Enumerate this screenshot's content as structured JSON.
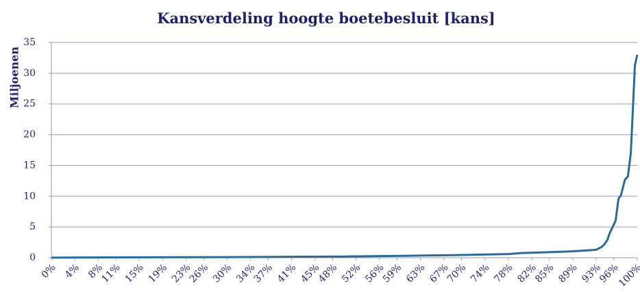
{
  "chart_data": {
    "type": "line",
    "title": "Kansverdeling hoogte boetebesluit [kans]",
    "y_label": "Miljoenen",
    "series": [
      {
        "color": "#2a6a98",
        "x": [
          0,
          10,
          20,
          30,
          40,
          50,
          60,
          70,
          75,
          78,
          80,
          85,
          88,
          90,
          93,
          94,
          94.4,
          94.9,
          95.3,
          95.7,
          96.3,
          96.8,
          97.2,
          97.9,
          98.4,
          98.9,
          99.6,
          100
        ],
        "values": [
          0.02,
          0.05,
          0.08,
          0.1,
          0.15,
          0.2,
          0.3,
          0.45,
          0.55,
          0.6,
          0.75,
          0.9,
          1.0,
          1.1,
          1.3,
          1.8,
          2.2,
          2.9,
          4.0,
          4.8,
          6.0,
          9.6,
          10.1,
          12.7,
          13.2,
          17,
          31.3,
          33
        ]
      }
    ],
    "xlim": [
      0,
      100
    ],
    "xticks": [
      {
        "value": 0,
        "label": "0%"
      },
      {
        "value": 4,
        "label": "4%"
      },
      {
        "value": 8,
        "label": "8%"
      },
      {
        "value": 11,
        "label": "11%"
      },
      {
        "value": 15,
        "label": "15%"
      },
      {
        "value": 19,
        "label": "19%"
      },
      {
        "value": 23,
        "label": "23%"
      },
      {
        "value": 26,
        "label": "26%"
      },
      {
        "value": 30,
        "label": "30%"
      },
      {
        "value": 34,
        "label": "34%"
      },
      {
        "value": 37,
        "label": "37%"
      },
      {
        "value": 41,
        "label": "41%"
      },
      {
        "value": 45,
        "label": "45%"
      },
      {
        "value": 48,
        "label": "48%"
      },
      {
        "value": 52,
        "label": "52%"
      },
      {
        "value": 56,
        "label": "56%"
      },
      {
        "value": 59,
        "label": "59%"
      },
      {
        "value": 63,
        "label": "63%"
      },
      {
        "value": 67,
        "label": "67%"
      },
      {
        "value": 70,
        "label": "70%"
      },
      {
        "value": 74,
        "label": "74%"
      },
      {
        "value": 78,
        "label": "78%"
      },
      {
        "value": 82,
        "label": "82%"
      },
      {
        "value": 85,
        "label": "85%"
      },
      {
        "value": 89,
        "label": "89%"
      },
      {
        "value": 93,
        "label": "93%"
      },
      {
        "value": 96,
        "label": "96%"
      },
      {
        "value": 100,
        "label": "100%"
      }
    ],
    "ylim": [
      0,
      35
    ],
    "yticks": [
      0,
      5,
      10,
      15,
      20,
      25,
      30,
      35
    ],
    "grid": true
  }
}
